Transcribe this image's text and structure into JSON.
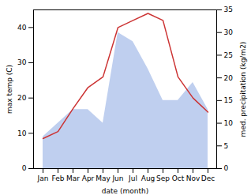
{
  "chart_data": {
    "type": "line",
    "xlabel": "date (month)",
    "ylabel": "max temp (C)",
    "y2label": "med. precipitation (kg/m2)",
    "categories": [
      "Jan",
      "Feb",
      "Mar",
      "Apr",
      "May",
      "Jun",
      "Jul",
      "Aug",
      "Sep",
      "Oct",
      "Nov",
      "Dec"
    ],
    "series": [
      {
        "type": "area",
        "axis": "y2",
        "color": "#bfcfef",
        "values": [
          7,
          10,
          13,
          13,
          10,
          30,
          28,
          22,
          15,
          15,
          19,
          13
        ]
      },
      {
        "type": "line",
        "color": "#cc3333",
        "values": [
          8.5,
          10.5,
          17.0,
          23.0,
          26.0,
          40.0,
          42.0,
          44.0,
          42.0,
          26.0,
          20.0,
          16.0
        ]
      }
    ],
    "ylim": [
      0,
      45
    ],
    "yticks": [
      0,
      10,
      20,
      30,
      40
    ],
    "y2lim": [
      0,
      35
    ],
    "y2ticks": [
      0,
      5,
      10,
      15,
      20,
      25,
      30,
      35
    ]
  }
}
